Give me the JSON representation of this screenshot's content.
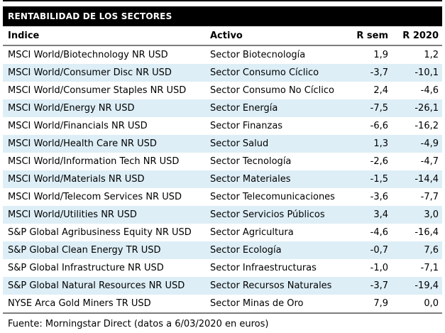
{
  "title": "RENTABILIDAD DE LOS SECTORES",
  "table": {
    "columns": [
      "Índice",
      "Activo",
      "R sem",
      "R 2020"
    ],
    "rows": [
      {
        "indice": "MSCI World/Biotechnology NR USD",
        "activo": "Sector Biotecnología",
        "r_sem": "1,9",
        "r_2020": "1,2"
      },
      {
        "indice": "MSCI World/Consumer Disc NR USD",
        "activo": "Sector Consumo Cíclico",
        "r_sem": "-3,7",
        "r_2020": "-10,1"
      },
      {
        "indice": "MSCI World/Consumer Staples NR USD",
        "activo": "Sector Consumo No Cíclico",
        "r_sem": "2,4",
        "r_2020": "-4,6"
      },
      {
        "indice": "MSCI World/Energy NR USD",
        "activo": "Sector Energía",
        "r_sem": "-7,5",
        "r_2020": "-26,1"
      },
      {
        "indice": "MSCI World/Financials NR USD",
        "activo": "Sector Finanzas",
        "r_sem": "-6,6",
        "r_2020": "-16,2"
      },
      {
        "indice": "MSCI World/Health Care NR USD",
        "activo": "Sector Salud",
        "r_sem": "1,3",
        "r_2020": "-4,9"
      },
      {
        "indice": "MSCI World/Information Tech NR USD",
        "activo": "Sector Tecnología",
        "r_sem": "-2,6",
        "r_2020": "-4,7"
      },
      {
        "indice": "MSCI World/Materials NR USD",
        "activo": "Sector Materiales",
        "r_sem": "-1,5",
        "r_2020": "-14,4"
      },
      {
        "indice": "MSCI World/Telecom Services NR USD",
        "activo": "Sector Telecomunicaciones",
        "r_sem": "-3,6",
        "r_2020": "-7,7"
      },
      {
        "indice": "MSCI World/Utilities NR USD",
        "activo": "Sector Servicios Públicos",
        "r_sem": "3,4",
        "r_2020": "3,0"
      },
      {
        "indice": "S&P Global Agribusiness Equity NR USD",
        "activo": "Sector Agricultura",
        "r_sem": "-4,6",
        "r_2020": "-16,4"
      },
      {
        "indice": "S&P Global Clean Energy TR USD",
        "activo": "Sector Ecología",
        "r_sem": "-0,7",
        "r_2020": "7,6"
      },
      {
        "indice": "S&P Global Infrastructure NR USD",
        "activo": "Sector Infraestructuras",
        "r_sem": "-1,0",
        "r_2020": "-7,1"
      },
      {
        "indice": "S&P Global Natural Resources NR USD",
        "activo": "Sector Recursos Naturales",
        "r_sem": "-3,7",
        "r_2020": "-19,4"
      },
      {
        "indice": "NYSE Arca Gold Miners TR USD",
        "activo": "Sector Minas de Oro",
        "r_sem": "7,9",
        "r_2020": "0,0"
      }
    ]
  },
  "footer": "Fuente: Morningstar Direct (datos a 6/03/2020 en euros)",
  "colors": {
    "title_bg": "#000000",
    "title_fg": "#ffffff",
    "text": "#000000",
    "row_alt": "#ddeef6",
    "rule_gray": "#7d7d7d"
  }
}
